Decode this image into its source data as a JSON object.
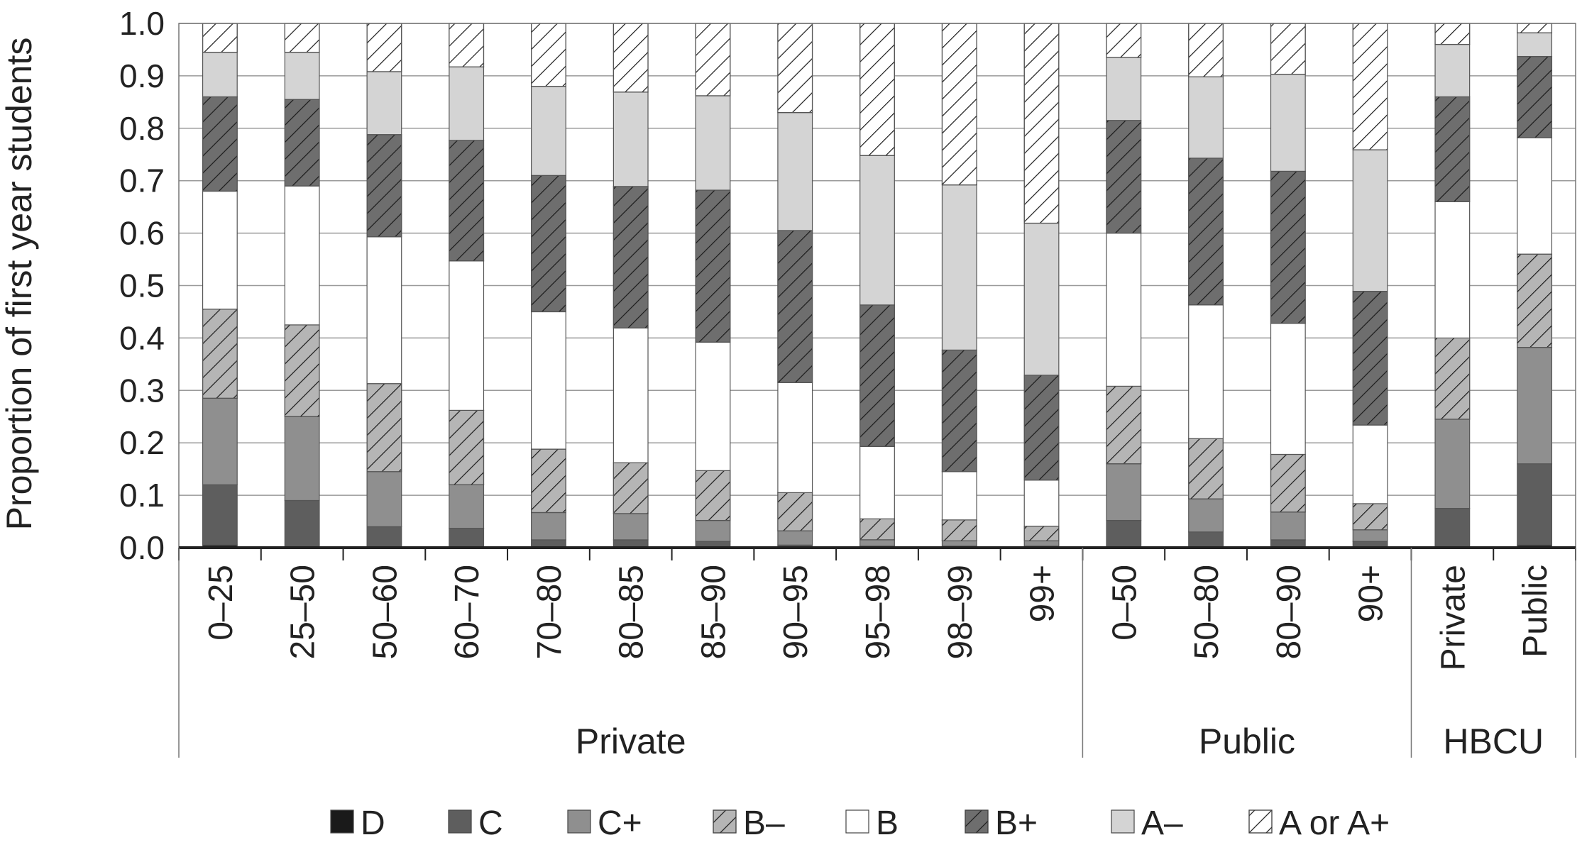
{
  "chart_data": {
    "type": "bar",
    "stacked": true,
    "title": "",
    "xlabel": "",
    "ylabel": "Proportion of first year students",
    "ylim": [
      0,
      1.0
    ],
    "yticks": [
      "0.0",
      "0.1",
      "0.2",
      "0.3",
      "0.4",
      "0.5",
      "0.6",
      "0.7",
      "0.8",
      "0.9",
      "1.0"
    ],
    "grid": true,
    "legend_position": "bottom",
    "categories": [
      "0–25",
      "25–50",
      "50–60",
      "60–70",
      "70–80",
      "80–85",
      "85–90",
      "90–95",
      "95–98",
      "98–99",
      "99+",
      "0–50",
      "50–80",
      "80–90",
      "90+",
      "Private",
      "Public"
    ],
    "groups": [
      {
        "label": "Private",
        "count": 11
      },
      {
        "label": "Public",
        "count": 4
      },
      {
        "label": "HBCU",
        "count": 2
      }
    ],
    "series": [
      {
        "name": "D",
        "fill": "#1a1a1a",
        "pattern": "none",
        "values": [
          0.005,
          0.0,
          0.0,
          0.0,
          0.0,
          0.0,
          0.0,
          0.0,
          0.0,
          0.0,
          0.0,
          0.0,
          0.0,
          0.0,
          0.0,
          0.0,
          0.005
        ]
      },
      {
        "name": "C",
        "fill": "#5e5e5e",
        "pattern": "none",
        "values": [
          0.115,
          0.09,
          0.04,
          0.037,
          0.015,
          0.015,
          0.012,
          0.005,
          0.003,
          0.003,
          0.003,
          0.052,
          0.03,
          0.015,
          0.012,
          0.075,
          0.155
        ]
      },
      {
        "name": "C+",
        "fill": "#8f8f8f",
        "pattern": "none",
        "values": [
          0.165,
          0.16,
          0.105,
          0.083,
          0.052,
          0.05,
          0.04,
          0.027,
          0.012,
          0.01,
          0.01,
          0.108,
          0.063,
          0.053,
          0.022,
          0.17,
          0.222
        ]
      },
      {
        "name": "B–",
        "fill": "#b5b5b5",
        "pattern": "hatch",
        "values": [
          0.17,
          0.175,
          0.168,
          0.142,
          0.121,
          0.097,
          0.095,
          0.073,
          0.04,
          0.04,
          0.028,
          0.148,
          0.115,
          0.11,
          0.05,
          0.155,
          0.178
        ]
      },
      {
        "name": "B",
        "fill": "#ffffff",
        "pattern": "none",
        "values": [
          0.225,
          0.265,
          0.28,
          0.285,
          0.262,
          0.257,
          0.245,
          0.21,
          0.138,
          0.092,
          0.088,
          0.292,
          0.255,
          0.25,
          0.15,
          0.26,
          0.222
        ]
      },
      {
        "name": "B+",
        "fill": "#6e6e6e",
        "pattern": "hatch",
        "values": [
          0.18,
          0.165,
          0.195,
          0.23,
          0.26,
          0.27,
          0.29,
          0.29,
          0.27,
          0.232,
          0.2,
          0.215,
          0.28,
          0.29,
          0.255,
          0.2,
          0.155
        ]
      },
      {
        "name": "A–",
        "fill": "#d4d4d4",
        "pattern": "none",
        "values": [
          0.085,
          0.09,
          0.12,
          0.14,
          0.17,
          0.18,
          0.18,
          0.225,
          0.285,
          0.315,
          0.29,
          0.12,
          0.155,
          0.185,
          0.27,
          0.1,
          0.045
        ]
      },
      {
        "name": "A or A+",
        "fill": "#ffffff",
        "pattern": "hatch",
        "values": [
          0.055,
          0.055,
          0.092,
          0.083,
          0.12,
          0.131,
          0.138,
          0.17,
          0.252,
          0.308,
          0.381,
          0.065,
          0.102,
          0.097,
          0.241,
          0.04,
          0.018
        ]
      }
    ]
  }
}
